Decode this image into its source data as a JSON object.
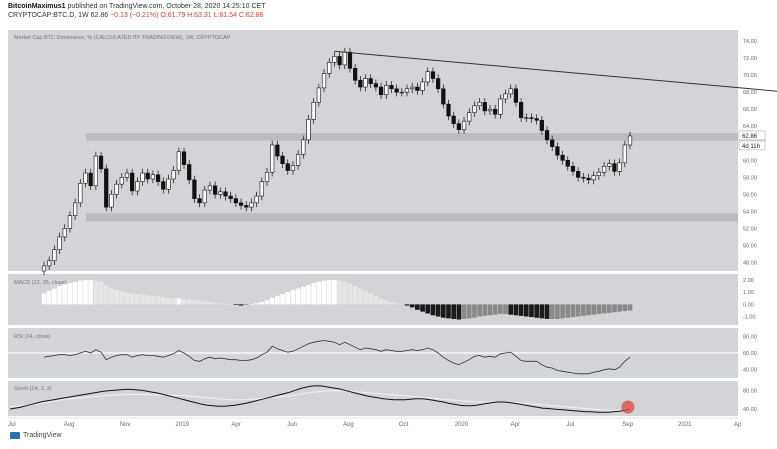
{
  "header": {
    "author": "BitcoinMaximus1",
    "published": "published on TradingView.com, October 28, 2020 14:25:10 CET",
    "symbol": "CRYPTOCAP:BTC.D, 1W",
    "last": "62.86",
    "change": "−0.13 (−0.21%)",
    "ohlc": "O:61.79 H:63.31 L:61.54 C:62.86"
  },
  "footer": {
    "brand": "TradingView"
  },
  "colors": {
    "panel_bg": "#d3d4d8",
    "up": "#ffffff",
    "down": "#111111",
    "trendline": "#333333",
    "zone": "#b8b9bd",
    "highlight": "#e04545"
  },
  "chart_data": [
    {
      "type": "candlestick",
      "title": "Market Cap BTC Dominance, % (CALCULATED BY TRADINGVIEW), 1W, CRYPTOCAP",
      "x_ticks": [
        "Jul",
        "Aug",
        "Nov",
        "2019",
        "Apr",
        "Jun",
        "Aug",
        "Oct",
        "2020",
        "Apr",
        "Jul",
        "Sep",
        "2021",
        "Ap"
      ],
      "y_ticks": [
        74.0,
        72.0,
        70.0,
        68.0,
        66.0,
        64.0,
        62.0,
        60.0,
        58.0,
        56.0,
        54.0,
        52.0,
        50.0,
        48.0
      ],
      "ylim": [
        47.0,
        75.3
      ],
      "last_price_label": "62.86",
      "countdown_label": "4d 11h",
      "close_series": [
        47.6,
        48.2,
        49.5,
        51.0,
        52.0,
        53.5,
        55.0,
        57.3,
        58.5,
        57.0,
        60.5,
        59.0,
        54.5,
        56.0,
        57.2,
        58.0,
        58.5,
        56.4,
        57.5,
        58.5,
        57.8,
        58.3,
        57.5,
        56.6,
        57.8,
        58.8,
        61.0,
        59.5,
        57.7,
        55.5,
        55.0,
        56.5,
        57.0,
        56.0,
        56.3,
        55.8,
        55.5,
        55.0,
        54.7,
        54.5,
        55.0,
        55.8,
        57.5,
        58.6,
        61.8,
        60.5,
        59.6,
        58.8,
        59.4,
        60.7,
        62.4,
        64.8,
        66.8,
        68.5,
        70.2,
        71.5,
        72.2,
        71.2,
        72.7,
        70.8,
        69.4,
        68.6,
        69.6,
        69.0,
        68.6,
        67.7,
        68.8,
        68.4,
        68.0,
        68.0,
        68.4,
        68.6,
        68.2,
        69.2,
        70.4,
        69.6,
        68.4,
        66.6,
        65.2,
        64.3,
        63.6,
        64.6,
        65.6,
        66.4,
        66.8,
        65.8,
        66.0,
        65.4,
        67.2,
        67.8,
        68.4,
        66.8,
        65.0,
        65.0,
        64.9,
        64.7,
        63.5,
        62.4,
        61.6,
        60.6,
        60.0,
        59.3,
        58.7,
        58.0,
        57.9,
        57.7,
        58.2,
        58.6,
        59.3,
        59.6,
        58.7,
        59.7,
        61.8,
        62.86
      ],
      "resistance_trendline": [
        [
          56,
          72.8
        ],
        [
          209,
          64.4
        ]
      ],
      "support_zones": [
        [
          62.3,
          63.2
        ],
        [
          52.8,
          53.8
        ]
      ]
    },
    {
      "type": "histogram",
      "title": "MACD (12, 26, close)",
      "y_ticks": [
        "2.00",
        "1.00",
        "0.00",
        "-1.00"
      ],
      "ylim": [
        -1.7,
        2.5
      ],
      "values": [
        0.9,
        1.1,
        1.3,
        1.5,
        1.65,
        1.75,
        1.85,
        1.95,
        2.0,
        2.0,
        1.95,
        1.85,
        1.6,
        1.35,
        1.2,
        1.1,
        1.0,
        0.9,
        0.85,
        0.8,
        0.75,
        0.7,
        0.65,
        0.6,
        0.55,
        0.5,
        0.5,
        0.45,
        0.4,
        0.35,
        0.3,
        0.25,
        0.2,
        0.15,
        0.1,
        0.05,
        0.0,
        -0.05,
        -0.1,
        -0.05,
        0.0,
        0.1,
        0.2,
        0.35,
        0.55,
        0.7,
        0.85,
        1.0,
        1.15,
        1.3,
        1.45,
        1.6,
        1.75,
        1.85,
        1.95,
        2.0,
        2.0,
        1.95,
        1.85,
        1.7,
        1.5,
        1.3,
        1.1,
        0.9,
        0.7,
        0.5,
        0.35,
        0.2,
        0.1,
        0.0,
        -0.1,
        -0.25,
        -0.45,
        -0.6,
        -0.75,
        -0.9,
        -1.0,
        -1.1,
        -1.15,
        -1.2,
        -1.25,
        -1.2,
        -1.15,
        -1.1,
        -1.0,
        -0.95,
        -0.9,
        -0.85,
        -0.8,
        -0.8,
        -0.85,
        -0.9,
        -0.95,
        -1.0,
        -1.05,
        -1.1,
        -1.15,
        -1.2,
        -1.2,
        -1.2,
        -1.15,
        -1.1,
        -1.05,
        -1.0,
        -0.95,
        -0.9,
        -0.85,
        -0.8,
        -0.75,
        -0.7,
        -0.65,
        -0.6,
        -0.55,
        -0.5
      ]
    },
    {
      "type": "line",
      "title": "RSI (14, close)",
      "y_ticks": [
        "80.00",
        "60.00",
        "40.00"
      ],
      "ylim": [
        30,
        90
      ],
      "reference_line": 60,
      "values": [
        55,
        56,
        57,
        58,
        58,
        57,
        58,
        60,
        62,
        60,
        64,
        61,
        52,
        55,
        57,
        58,
        58,
        55,
        57,
        58,
        57,
        57,
        56,
        55,
        57,
        59,
        63,
        60,
        56,
        51,
        50,
        53,
        55,
        53,
        54,
        53,
        52,
        52,
        51,
        51,
        52,
        54,
        58,
        61,
        68,
        65,
        63,
        61,
        62,
        65,
        68,
        71,
        73,
        74,
        75,
        74,
        73,
        70,
        73,
        70,
        67,
        64,
        66,
        65,
        64,
        62,
        64,
        63,
        62,
        62,
        63,
        64,
        63,
        64,
        66,
        64,
        60,
        55,
        51,
        48,
        46,
        49,
        52,
        56,
        57,
        55,
        56,
        55,
        59,
        60,
        61,
        56,
        51,
        50,
        50,
        50,
        46,
        43,
        42,
        39,
        38,
        37,
        36,
        35,
        35,
        35,
        37,
        38,
        40,
        41,
        40,
        43,
        50,
        55
      ]
    },
    {
      "type": "line",
      "title": "Stoch (14, 3, 3)",
      "y_ticks": [
        "80.00",
        "40.00"
      ],
      "ylim": [
        25,
        100
      ],
      "highlight_marker": true,
      "series": [
        {
          "values": [
            40,
            42,
            44,
            47,
            50,
            53,
            56,
            58,
            60,
            62,
            64,
            66,
            68,
            70,
            72,
            74,
            76,
            78,
            79,
            80,
            81,
            82,
            82,
            81,
            80,
            78,
            76,
            74,
            71,
            68,
            65,
            62,
            59,
            56,
            53,
            50,
            48,
            47,
            46,
            46,
            47,
            48,
            50,
            52,
            55,
            58,
            61,
            64,
            67,
            70,
            73,
            76,
            80,
            84,
            87,
            89,
            90,
            89,
            87,
            85,
            83,
            80,
            77,
            74,
            71,
            68,
            66,
            64,
            62,
            61,
            60,
            60,
            60,
            61,
            62,
            62,
            61,
            59,
            57,
            55,
            52,
            50,
            48,
            47,
            47,
            48,
            50,
            52,
            54,
            55,
            55,
            54,
            52,
            50,
            48,
            46,
            44,
            42,
            41,
            40,
            39,
            38,
            37,
            36,
            35,
            34,
            34,
            33,
            33,
            33,
            34,
            35,
            37,
            40
          ]
        },
        {
          "values": [
            45,
            46,
            47,
            48,
            49,
            51,
            53,
            55,
            57,
            59,
            61,
            62,
            63,
            64,
            65,
            66,
            67,
            68,
            69,
            70,
            70,
            71,
            71,
            71,
            71,
            71,
            70,
            70,
            70,
            70,
            69,
            69,
            68,
            67,
            66,
            65,
            64,
            63,
            62,
            61,
            60,
            60,
            60,
            60,
            61,
            62,
            63,
            64,
            65,
            66,
            67,
            68,
            70,
            72,
            74,
            76,
            77,
            78,
            79,
            79,
            79,
            79,
            78,
            77,
            76,
            75,
            74,
            73,
            72,
            71,
            70,
            69,
            68,
            67,
            66,
            65,
            64,
            63,
            62,
            61,
            60,
            59,
            58,
            57,
            56,
            55,
            55,
            55,
            55,
            55,
            55,
            54,
            54,
            53,
            52,
            51,
            50,
            49,
            48,
            47,
            46,
            45,
            44,
            43,
            42,
            41,
            40,
            39,
            38,
            37,
            37,
            37,
            37,
            38
          ]
        }
      ]
    }
  ]
}
